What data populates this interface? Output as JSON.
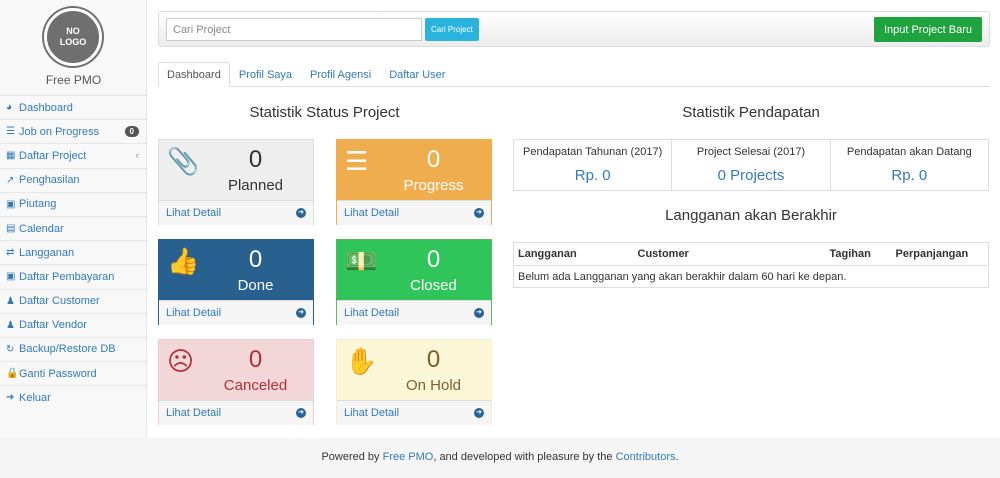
{
  "sidebar": {
    "logo_text": [
      "NO",
      "LOGO"
    ],
    "brand": "Free PMO",
    "items": [
      {
        "label": "Dashboard",
        "icon": "dashboard-icon",
        "glyph": "◕"
      },
      {
        "label": "Job on Progress",
        "icon": "tasks-icon",
        "glyph": "☰",
        "badge": "0"
      },
      {
        "label": "Daftar Project",
        "icon": "table-icon",
        "glyph": "▦",
        "chevron": "‹"
      },
      {
        "label": "Penghasilan",
        "icon": "line-chart-icon",
        "glyph": "↗"
      },
      {
        "label": "Piutang",
        "icon": "money-icon",
        "glyph": "▣"
      },
      {
        "label": "Calendar",
        "icon": "calendar-icon",
        "glyph": "▤"
      },
      {
        "label": "Langganan",
        "icon": "retweet-icon",
        "glyph": "⇄"
      },
      {
        "label": "Daftar Pembayaran",
        "icon": "money-icon",
        "glyph": "▣"
      },
      {
        "label": "Daftar Customer",
        "icon": "users-icon",
        "glyph": "♟"
      },
      {
        "label": "Daftar Vendor",
        "icon": "users-icon",
        "glyph": "♟"
      },
      {
        "label": "Backup/Restore DB",
        "icon": "refresh-icon",
        "glyph": "↻"
      },
      {
        "label": "Ganti Password",
        "icon": "lock-icon",
        "glyph": "🔒"
      },
      {
        "label": "Keluar",
        "icon": "sign-out-icon",
        "glyph": "➜"
      }
    ]
  },
  "toolbar": {
    "search_placeholder": "Cari Project",
    "search_button": "Cari Project",
    "new_button": "Input Project Baru"
  },
  "tabs": [
    "Dashboard",
    "Profil Saya",
    "Profil Agensi",
    "Daftar User"
  ],
  "status": {
    "title": "Statistik Status Project",
    "detail_label": "Lihat Detail",
    "panels": [
      {
        "label": "Planned",
        "count": "0",
        "icon": "paperclip-icon",
        "glyph": "📎",
        "bg": "#eeeeee",
        "fg": "#333333",
        "border": "#dddddd"
      },
      {
        "label": "Progress",
        "count": "0",
        "icon": "tasks-icon",
        "glyph": "☰",
        "bg": "#f0ad4e",
        "fg": "#ffffff",
        "border": "#f0ad4e"
      },
      {
        "label": "Done",
        "count": "0",
        "icon": "thumbs-up-icon",
        "glyph": "👍",
        "bg": "#286090",
        "fg": "#ffffff",
        "border": "#286090"
      },
      {
        "label": "Closed",
        "count": "0",
        "icon": "money-icon",
        "glyph": "💵",
        "bg": "#2fc55a",
        "fg": "#ffffff",
        "border": "#5cb85c"
      },
      {
        "label": "Canceled",
        "count": "0",
        "icon": "frown-icon",
        "glyph": "☹",
        "bg": "#f2d6d8",
        "fg": "#b0303a",
        "border": "#ebccd1"
      },
      {
        "label": "On Hold",
        "count": "0",
        "icon": "hand-icon",
        "glyph": "✋",
        "bg": "#fbf6d5",
        "fg": "#7a5f2e",
        "border": "#faebcc"
      }
    ]
  },
  "income": {
    "title": "Statistik Pendapatan",
    "stats": [
      {
        "label": "Pendapatan Tahunan (2017)",
        "value": "Rp. 0"
      },
      {
        "label": "Project Selesai (2017)",
        "value": "0 Projects"
      },
      {
        "label": "Pendapatan akan Datang",
        "value": "Rp. 0"
      }
    ]
  },
  "subscriptions": {
    "title": "Langganan akan Berakhir",
    "columns": [
      "Langganan",
      "Customer",
      "Tagihan",
      "Perpanjangan"
    ],
    "empty": "Belum ada Langganan yang akan berakhir dalam 60 hari ke depan."
  },
  "footer": {
    "prefix": "Powered by ",
    "link1": "Free PMO",
    "middle": ", and developed with pleasure by the ",
    "link2": "Contributors",
    "suffix": "."
  }
}
